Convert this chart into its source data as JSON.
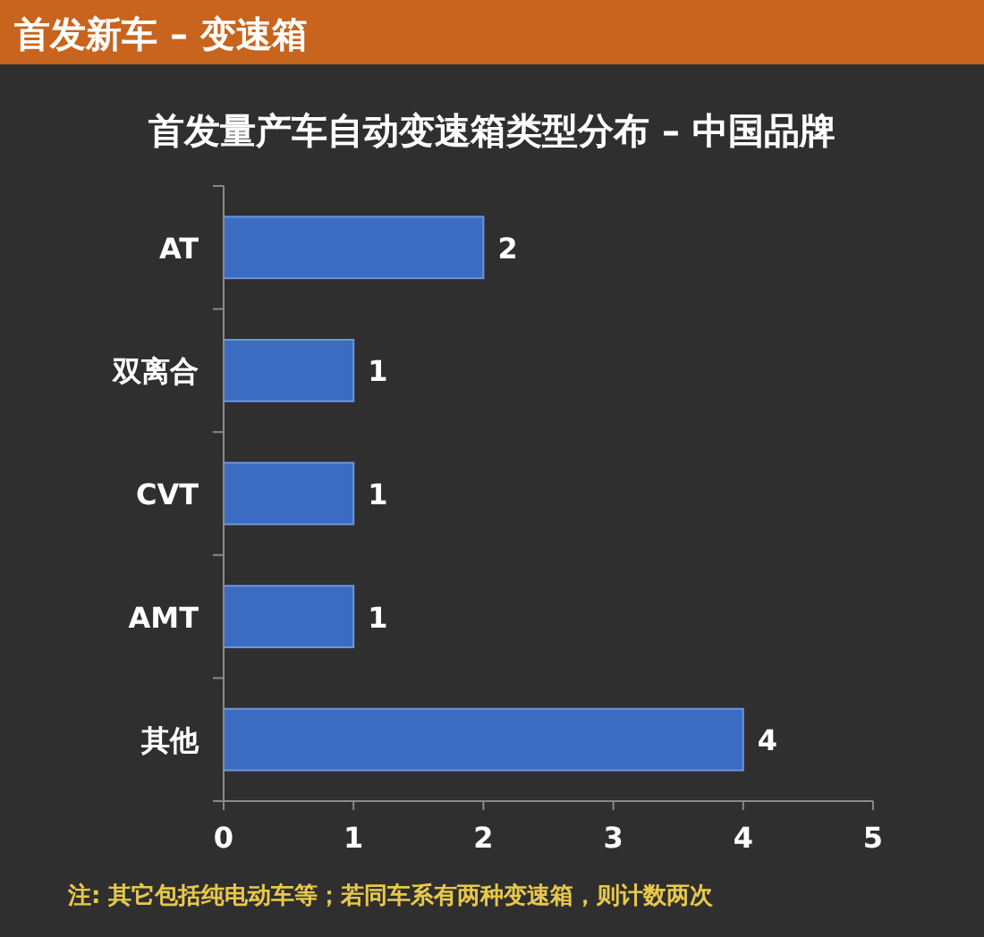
{
  "chart_data": {
    "type": "bar",
    "orientation": "horizontal",
    "title": "首发新车 – 变速箱",
    "subtitle": "首发量产车自动变速箱类型分布 – 中国品牌",
    "categories": [
      "AT",
      "双离合",
      "CVT",
      "AMT",
      "其他"
    ],
    "values": [
      2,
      1,
      1,
      1,
      4
    ],
    "color": "#3b6cc2",
    "xlim": [
      0,
      5
    ],
    "xticks": [
      0,
      1,
      2,
      3,
      4,
      5
    ],
    "data_labels": true,
    "annotations": [
      "注: 其它包括纯电动车等；若同车系有两种变速箱，则计数两次"
    ]
  }
}
